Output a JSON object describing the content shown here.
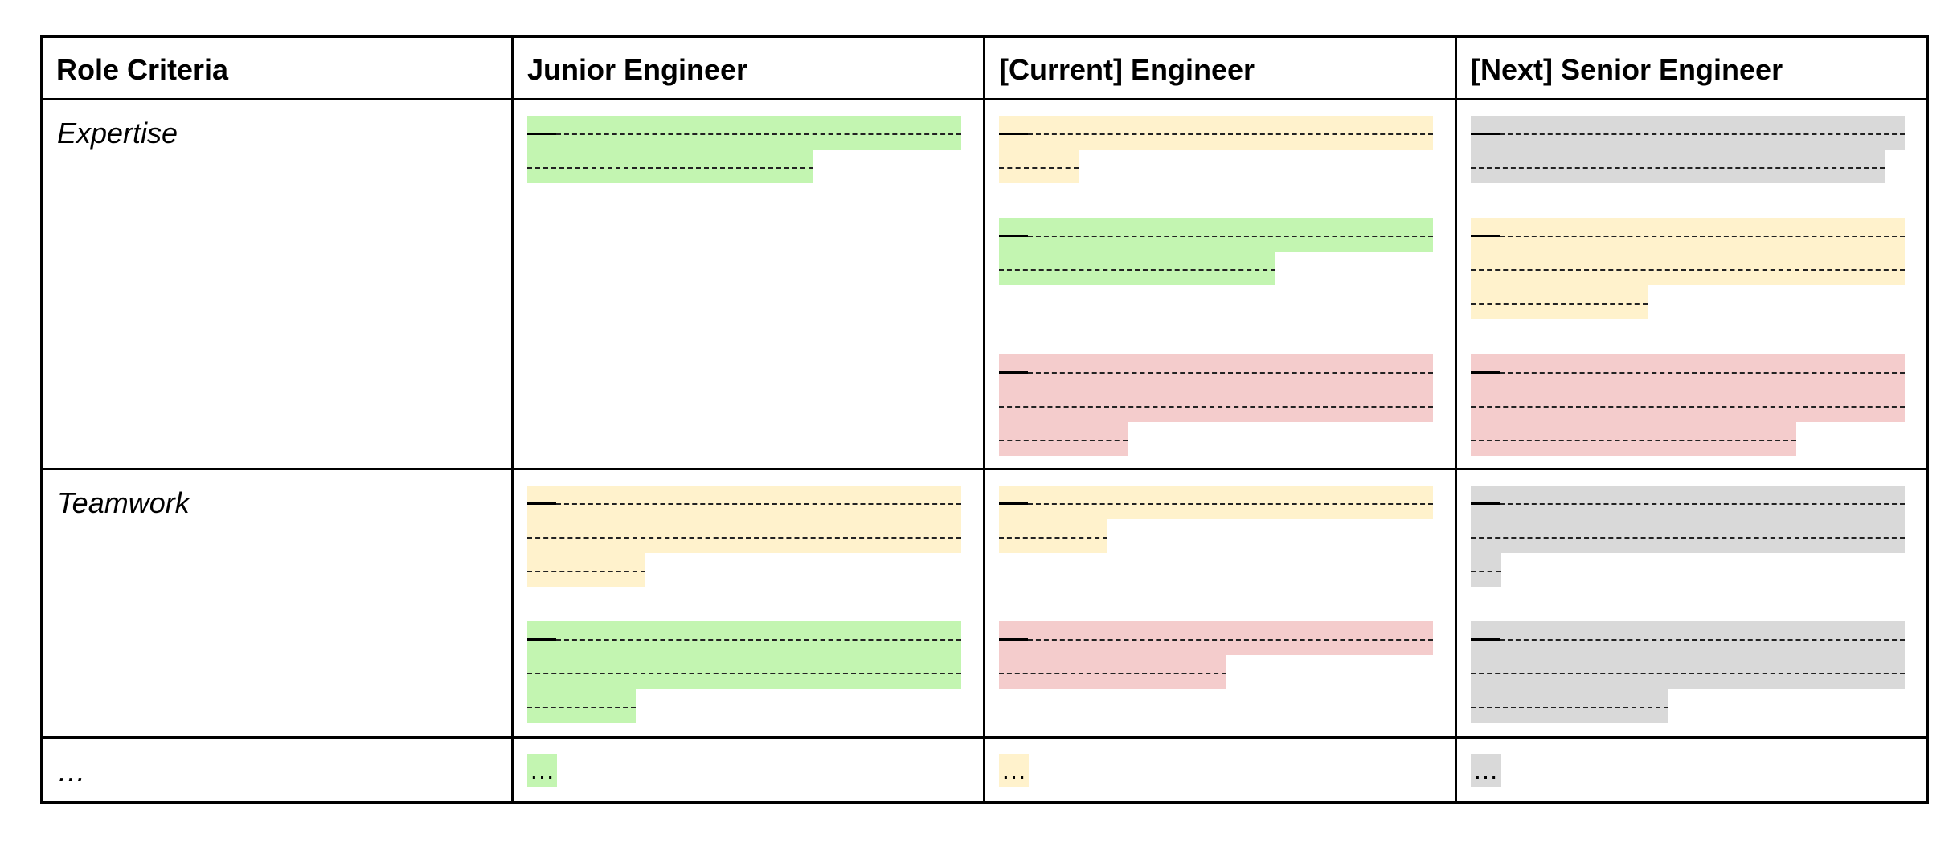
{
  "colors": {
    "green": "#c3f5b1",
    "yellow": "#fff2cc",
    "red": "#f4cccc",
    "gray": "#d9d9d9",
    "border": "#000000"
  },
  "table": {
    "headers": [
      "Role Criteria",
      "Junior Engineer",
      "[Current] Engineer",
      "[Next] Senior Engineer"
    ],
    "rows": [
      {
        "label": "Expertise"
      },
      {
        "label": "Teamwork"
      },
      {
        "label": "…"
      }
    ],
    "ellipsis_cells": [
      {
        "text": "…",
        "color": "green"
      },
      {
        "text": "…",
        "color": "yellow"
      },
      {
        "text": "…",
        "color": "gray"
      }
    ]
  }
}
